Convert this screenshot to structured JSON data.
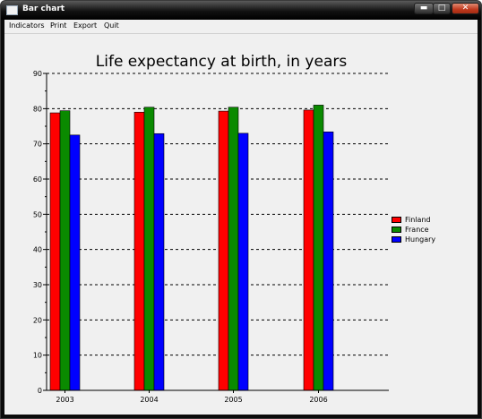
{
  "window": {
    "title": "Bar chart",
    "icon": "window-icon"
  },
  "title_buttons": {
    "minimize": "minimize-icon",
    "maximize": "maximize-icon",
    "close": "close-icon"
  },
  "menu": {
    "items": [
      "Indicators",
      "Print",
      "Export",
      "Quit"
    ]
  },
  "colors": {
    "Finland": "#ff0000",
    "France": "#0a8a00",
    "Hungary": "#0000ff",
    "background": "#f0f0f0"
  },
  "chart_data": {
    "type": "bar",
    "title": "Life expectancy at birth, in years",
    "xlabel": "",
    "ylabel": "",
    "categories": [
      "2003",
      "2004",
      "2005",
      "2006"
    ],
    "series": [
      {
        "name": "Finland",
        "values": [
          78.8,
          79.0,
          79.3,
          79.6
        ]
      },
      {
        "name": "France",
        "values": [
          79.4,
          80.4,
          80.4,
          81.0
        ]
      },
      {
        "name": "Hungary",
        "values": [
          72.5,
          72.9,
          73.0,
          73.4
        ]
      }
    ],
    "ylim": [
      0,
      90
    ],
    "yticks": [
      "0",
      "10",
      "20",
      "30",
      "40",
      "50",
      "60",
      "70",
      "80",
      "90"
    ],
    "grid": true,
    "legend_position": "right"
  }
}
